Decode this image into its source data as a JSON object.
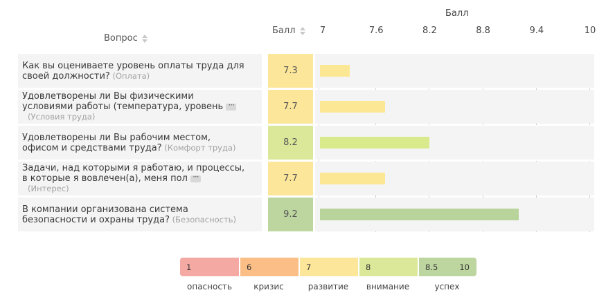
{
  "header": {
    "question_label": "Вопрос",
    "score_label": "Балл",
    "axis_title": "Балл"
  },
  "axis": {
    "ticks": [
      "7",
      "7.6",
      "8.2",
      "8.8",
      "9.4",
      "10"
    ],
    "min": 7,
    "max": 10
  },
  "chart_data": {
    "type": "bar",
    "categories": [
      "Как вы оцениваете уровень оплаты труда для своей должности?",
      "Удовлетворены ли Вы физическими условиями работы (температура, уровень",
      "Удовлетворены ли Вы рабочим местом, офисом и средствами труда?",
      "Задачи, над которыми я работаю, и процессы, в которые я вовлечен(а), меня пол",
      "В компании организована система безопасности и охраны труда?"
    ],
    "values": [
      7.3,
      7.7,
      8.2,
      7.7,
      9.2
    ],
    "xlabel": "Балл",
    "xlim": [
      7,
      10
    ]
  },
  "rows": [
    {
      "line1": "Как вы оцениваете уровень оплаты труда для",
      "line2": "своей должности?",
      "category": "(Оплата)",
      "score": "7.3",
      "value": 7.3,
      "cell_color": "#fbe69a",
      "bar_color": "#fce894",
      "truncated": false
    },
    {
      "line1": "Удовлетворены ли Вы физическими",
      "line2": "условиями работы (температура, уровень",
      "category": "(Условия труда)",
      "score": "7.7",
      "value": 7.7,
      "cell_color": "#fbe69a",
      "bar_color": "#fce894",
      "truncated": true
    },
    {
      "line1": "Удовлетворены ли Вы рабочим местом,",
      "line2": "офисом и средствами труда?",
      "category": "(Комфорт труда)",
      "score": "8.2",
      "value": 8.2,
      "cell_color": "#dbe89a",
      "bar_color": "#d9ea8c",
      "truncated": false
    },
    {
      "line1": "Задачи, над которыми я работаю, и процессы,",
      "line2": "в которые я вовлечен(а), меня пол",
      "category": "(Интерес)",
      "score": "7.7",
      "value": 7.7,
      "cell_color": "#fbe69a",
      "bar_color": "#fce894",
      "truncated": true
    },
    {
      "line1": "В компании организована система",
      "line2": "безопасности и охраны труда?",
      "category": "(Безопасность)",
      "score": "9.2",
      "value": 9.2,
      "cell_color": "#bdd6a0",
      "bar_color": "#b8d49b",
      "truncated": false
    }
  ],
  "legend": [
    {
      "v1": "1",
      "v2": "",
      "label": "опасность",
      "color": "#f4a9a3"
    },
    {
      "v1": "6",
      "v2": "",
      "label": "кризис",
      "color": "#fbbe87"
    },
    {
      "v1": "7",
      "v2": "",
      "label": "развитие",
      "color": "#fbe69a"
    },
    {
      "v1": "8",
      "v2": "",
      "label": "внимание",
      "color": "#dbe89a"
    },
    {
      "v1": "8.5",
      "v2": "10",
      "label": "успех",
      "color": "#bdd6a0"
    }
  ]
}
